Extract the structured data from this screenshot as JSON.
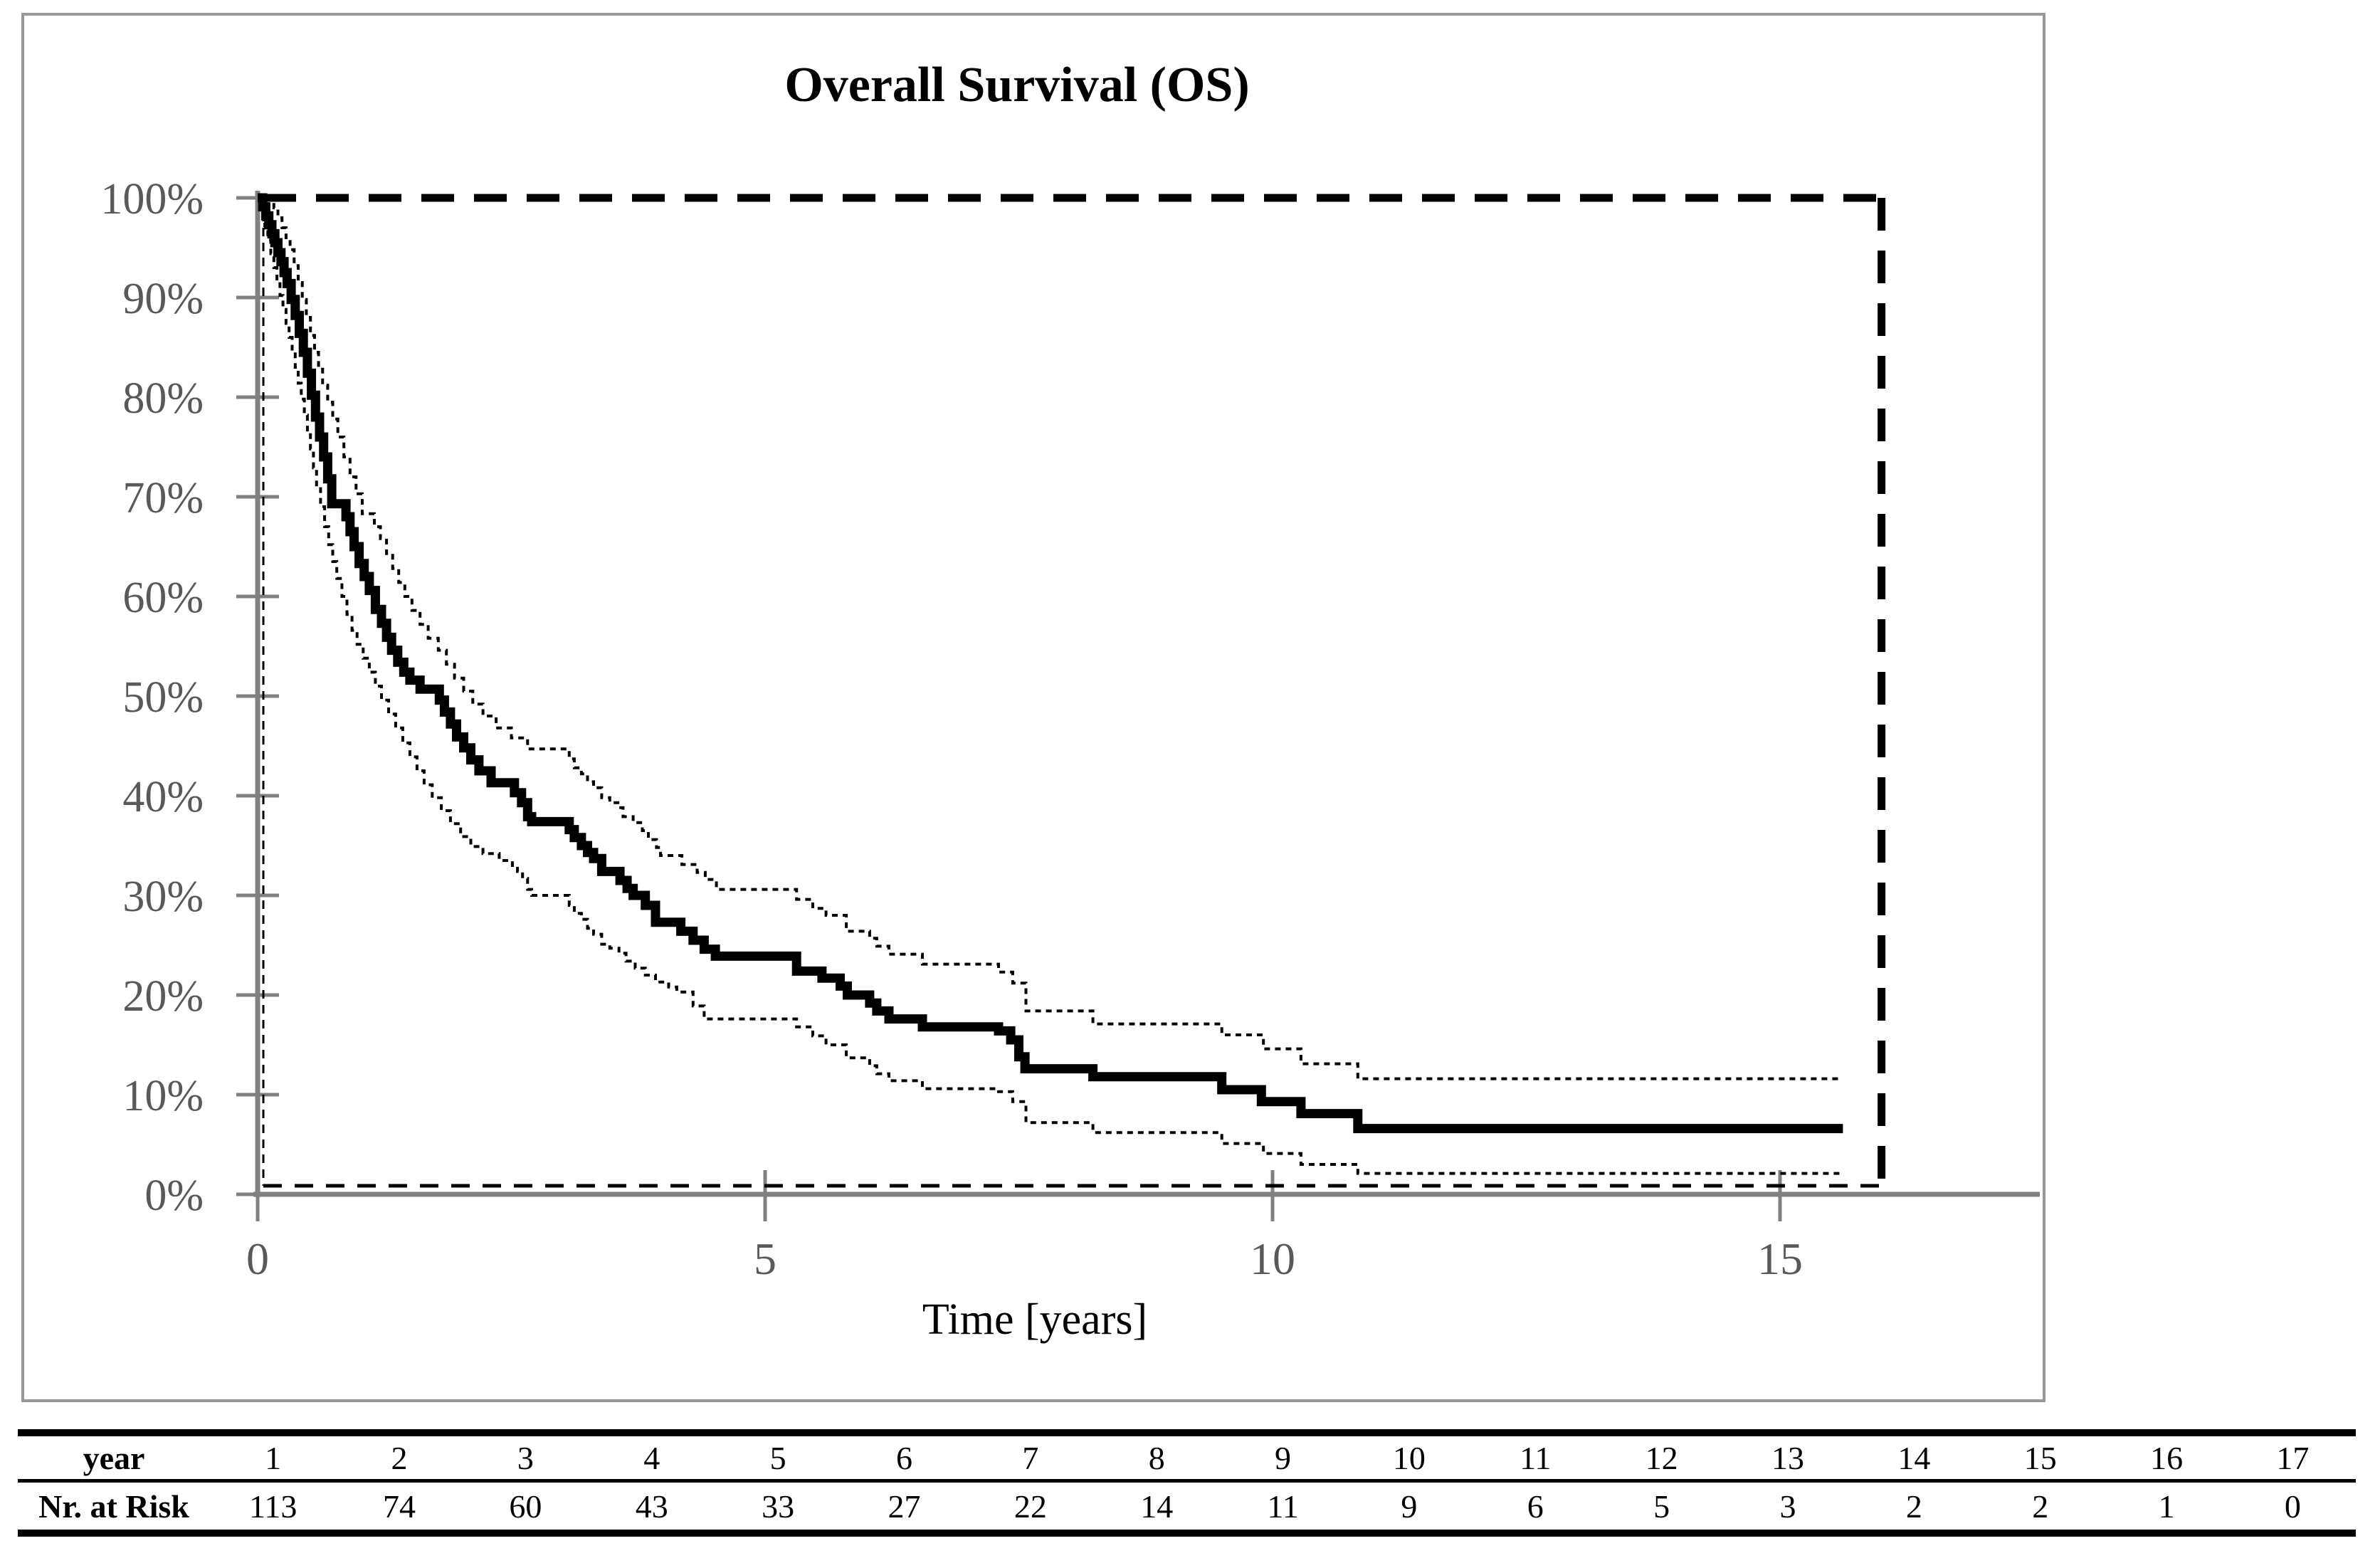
{
  "colors": {
    "text_gray": "#595959",
    "axis_gray": "#808080",
    "curve_black": "#000000",
    "frame_gray": "#999999"
  },
  "chart_data": {
    "type": "line",
    "subtype": "kaplan-meier-step",
    "title": "Overall Survival (OS)",
    "xlabel": "Time [years]",
    "ylabel": "",
    "x_ticks": [
      0,
      5,
      10,
      15
    ],
    "y_ticks_percent": [
      0,
      10,
      20,
      30,
      40,
      50,
      60,
      70,
      80,
      90,
      100
    ],
    "y_tick_label_suffix": "%",
    "xlim_years": [
      0,
      17.6
    ],
    "ylim_percent": [
      0,
      100
    ],
    "dashed_box_years": [
      0,
      16
    ],
    "grid": false,
    "legend": "none",
    "series": [
      {
        "name": "OS estimate",
        "style": "solid-thick",
        "step_points": [
          [
            0,
            100
          ],
          [
            0.05,
            99.1
          ],
          [
            0.08,
            98.2
          ],
          [
            0.11,
            97.3
          ],
          [
            0.14,
            96.4
          ],
          [
            0.17,
            95.5
          ],
          [
            0.2,
            94.5
          ],
          [
            0.23,
            93.6
          ],
          [
            0.26,
            92.5
          ],
          [
            0.29,
            91.4
          ],
          [
            0.33,
            89.8
          ],
          [
            0.37,
            88.2
          ],
          [
            0.41,
            86.4
          ],
          [
            0.45,
            84.5
          ],
          [
            0.49,
            82.4
          ],
          [
            0.53,
            80.2
          ],
          [
            0.57,
            78.0
          ],
          [
            0.61,
            76.0
          ],
          [
            0.65,
            74.0
          ],
          [
            0.69,
            71.8
          ],
          [
            0.73,
            69.3
          ],
          [
            0.87,
            68.0
          ],
          [
            0.91,
            66.5
          ],
          [
            0.95,
            65.0
          ],
          [
            1.0,
            63.3
          ],
          [
            1.05,
            62.0
          ],
          [
            1.1,
            60.6
          ],
          [
            1.16,
            58.7
          ],
          [
            1.22,
            57.3
          ],
          [
            1.27,
            55.9
          ],
          [
            1.32,
            54.6
          ],
          [
            1.38,
            53.4
          ],
          [
            1.44,
            52.4
          ],
          [
            1.5,
            51.6
          ],
          [
            1.6,
            50.7
          ],
          [
            1.79,
            49.6
          ],
          [
            1.84,
            48.4
          ],
          [
            1.9,
            47.2
          ],
          [
            1.96,
            45.9
          ],
          [
            2.03,
            44.8
          ],
          [
            2.1,
            43.6
          ],
          [
            2.18,
            42.5
          ],
          [
            2.3,
            41.3
          ],
          [
            2.53,
            40.3
          ],
          [
            2.6,
            39.3
          ],
          [
            2.66,
            37.9
          ],
          [
            2.7,
            37.4
          ],
          [
            3.07,
            36.6
          ],
          [
            3.12,
            35.8
          ],
          [
            3.19,
            35.0
          ],
          [
            3.25,
            34.3
          ],
          [
            3.31,
            33.7
          ],
          [
            3.39,
            32.4
          ],
          [
            3.57,
            31.5
          ],
          [
            3.64,
            30.7
          ],
          [
            3.7,
            30.0
          ],
          [
            3.82,
            29.0
          ],
          [
            3.92,
            27.3
          ],
          [
            4.17,
            26.4
          ],
          [
            4.29,
            25.5
          ],
          [
            4.4,
            24.6
          ],
          [
            4.51,
            23.9
          ],
          [
            5.31,
            22.4
          ],
          [
            5.56,
            21.7
          ],
          [
            5.74,
            20.9
          ],
          [
            5.81,
            20.0
          ],
          [
            6.03,
            19.2
          ],
          [
            6.1,
            18.4
          ],
          [
            6.22,
            17.6
          ],
          [
            6.55,
            16.8
          ],
          [
            7.3,
            16.4
          ],
          [
            7.42,
            15.5
          ],
          [
            7.5,
            13.8
          ],
          [
            7.56,
            12.6
          ],
          [
            8.23,
            11.8
          ],
          [
            9.5,
            10.5
          ],
          [
            9.89,
            9.3
          ],
          [
            10.28,
            8.1
          ],
          [
            10.84,
            6.6
          ],
          [
            15.62,
            6.6
          ]
        ]
      },
      {
        "name": "Upper 95% CI",
        "style": "dotted-thin",
        "step_points": [
          [
            0,
            100
          ],
          [
            0.12,
            100
          ],
          [
            0.16,
            99.0
          ],
          [
            0.2,
            98.0
          ],
          [
            0.24,
            97.0
          ],
          [
            0.28,
            96.0
          ],
          [
            0.32,
            94.8
          ],
          [
            0.36,
            93.2
          ],
          [
            0.4,
            91.5
          ],
          [
            0.44,
            89.8
          ],
          [
            0.48,
            88.0
          ],
          [
            0.52,
            86.2
          ],
          [
            0.56,
            84.5
          ],
          [
            0.6,
            82.8
          ],
          [
            0.64,
            81.2
          ],
          [
            0.69,
            79.5
          ],
          [
            0.74,
            77.8
          ],
          [
            0.79,
            76.0
          ],
          [
            0.85,
            74.0
          ],
          [
            0.91,
            72.0
          ],
          [
            0.97,
            70.3
          ],
          [
            1.03,
            68.3
          ],
          [
            1.15,
            67.0
          ],
          [
            1.21,
            65.8
          ],
          [
            1.27,
            64.3
          ],
          [
            1.33,
            62.8
          ],
          [
            1.39,
            61.4
          ],
          [
            1.45,
            60.0
          ],
          [
            1.52,
            58.6
          ],
          [
            1.6,
            57.2
          ],
          [
            1.68,
            55.8
          ],
          [
            1.78,
            54.6
          ],
          [
            1.86,
            53.2
          ],
          [
            1.94,
            51.8
          ],
          [
            2.03,
            50.5
          ],
          [
            2.12,
            49.2
          ],
          [
            2.22,
            48.0
          ],
          [
            2.35,
            46.8
          ],
          [
            2.5,
            45.8
          ],
          [
            2.66,
            44.7
          ],
          [
            3.07,
            43.7
          ],
          [
            3.12,
            42.8
          ],
          [
            3.19,
            42.2
          ],
          [
            3.25,
            41.4
          ],
          [
            3.31,
            40.8
          ],
          [
            3.39,
            39.8
          ],
          [
            3.47,
            39.3
          ],
          [
            3.55,
            38.8
          ],
          [
            3.6,
            37.9
          ],
          [
            3.7,
            37.3
          ],
          [
            3.79,
            36.5
          ],
          [
            3.85,
            35.6
          ],
          [
            3.93,
            34.8
          ],
          [
            3.97,
            34.0
          ],
          [
            4.18,
            33.1
          ],
          [
            4.33,
            32.3
          ],
          [
            4.41,
            31.6
          ],
          [
            4.52,
            30.6
          ],
          [
            5.31,
            29.6
          ],
          [
            5.47,
            28.7
          ],
          [
            5.6,
            28.0
          ],
          [
            5.8,
            26.4
          ],
          [
            6.03,
            25.7
          ],
          [
            6.1,
            24.9
          ],
          [
            6.22,
            24.1
          ],
          [
            6.55,
            23.1
          ],
          [
            7.3,
            22.3
          ],
          [
            7.44,
            21.2
          ],
          [
            7.57,
            18.4
          ],
          [
            8.23,
            17.1
          ],
          [
            9.5,
            16.0
          ],
          [
            9.91,
            14.6
          ],
          [
            10.28,
            13.1
          ],
          [
            10.84,
            11.6
          ],
          [
            15.62,
            11.6
          ]
        ]
      },
      {
        "name": "Lower 95% CI",
        "style": "dotted-thin",
        "step_points": [
          [
            0,
            100
          ],
          [
            0.04,
            98.6
          ],
          [
            0.07,
            97.2
          ],
          [
            0.1,
            95.8
          ],
          [
            0.13,
            94.4
          ],
          [
            0.16,
            93.0
          ],
          [
            0.19,
            91.6
          ],
          [
            0.22,
            90.2
          ],
          [
            0.25,
            88.8
          ],
          [
            0.28,
            87.4
          ],
          [
            0.31,
            86.0
          ],
          [
            0.34,
            84.5
          ],
          [
            0.37,
            83.0
          ],
          [
            0.4,
            81.4
          ],
          [
            0.43,
            79.8
          ],
          [
            0.46,
            78.2
          ],
          [
            0.49,
            76.5
          ],
          [
            0.52,
            74.8
          ],
          [
            0.55,
            72.9
          ],
          [
            0.58,
            71.0
          ],
          [
            0.62,
            69.0
          ],
          [
            0.66,
            67.0
          ],
          [
            0.7,
            65.2
          ],
          [
            0.74,
            63.5
          ],
          [
            0.78,
            61.8
          ],
          [
            0.83,
            60.0
          ],
          [
            0.88,
            58.2
          ],
          [
            0.93,
            56.6
          ],
          [
            0.98,
            55.2
          ],
          [
            1.04,
            53.8
          ],
          [
            1.1,
            52.4
          ],
          [
            1.16,
            51.0
          ],
          [
            1.22,
            49.6
          ],
          [
            1.29,
            48.2
          ],
          [
            1.36,
            46.8
          ],
          [
            1.43,
            45.3
          ],
          [
            1.5,
            43.9
          ],
          [
            1.57,
            42.5
          ],
          [
            1.64,
            41.1
          ],
          [
            1.72,
            39.8
          ],
          [
            1.81,
            38.5
          ],
          [
            1.9,
            37.2
          ],
          [
            2.0,
            35.9
          ],
          [
            2.1,
            34.9
          ],
          [
            2.22,
            34.2
          ],
          [
            2.38,
            33.5
          ],
          [
            2.51,
            33.0
          ],
          [
            2.56,
            32.4
          ],
          [
            2.61,
            31.7
          ],
          [
            2.66,
            30.6
          ],
          [
            2.7,
            30.0
          ],
          [
            3.07,
            29.0
          ],
          [
            3.12,
            28.2
          ],
          [
            3.19,
            27.6
          ],
          [
            3.25,
            26.7
          ],
          [
            3.31,
            26.1
          ],
          [
            3.39,
            25.1
          ],
          [
            3.47,
            24.7
          ],
          [
            3.56,
            24.2
          ],
          [
            3.63,
            23.4
          ],
          [
            3.72,
            22.7
          ],
          [
            3.82,
            22.0
          ],
          [
            3.92,
            21.3
          ],
          [
            4.05,
            20.8
          ],
          [
            4.13,
            20.3
          ],
          [
            4.29,
            18.9
          ],
          [
            4.4,
            17.6
          ],
          [
            5.31,
            16.8
          ],
          [
            5.47,
            15.9
          ],
          [
            5.6,
            15.0
          ],
          [
            5.8,
            13.7
          ],
          [
            6.03,
            12.9
          ],
          [
            6.1,
            12.1
          ],
          [
            6.22,
            11.4
          ],
          [
            6.55,
            10.6
          ],
          [
            7.3,
            10.3
          ],
          [
            7.44,
            9.3
          ],
          [
            7.57,
            7.2
          ],
          [
            8.23,
            6.2
          ],
          [
            9.5,
            5.1
          ],
          [
            9.91,
            4.1
          ],
          [
            10.28,
            3.0
          ],
          [
            10.84,
            2.1
          ],
          [
            15.62,
            2.1
          ]
        ]
      }
    ]
  },
  "risk_table": {
    "year_label": "year",
    "risk_label": "Nr. at Risk",
    "years": [
      1,
      2,
      3,
      4,
      5,
      6,
      7,
      8,
      9,
      10,
      11,
      12,
      13,
      14,
      15,
      16,
      17
    ],
    "at_risk": [
      113,
      74,
      60,
      43,
      33,
      27,
      22,
      14,
      11,
      9,
      6,
      5,
      3,
      2,
      2,
      1,
      0
    ]
  }
}
